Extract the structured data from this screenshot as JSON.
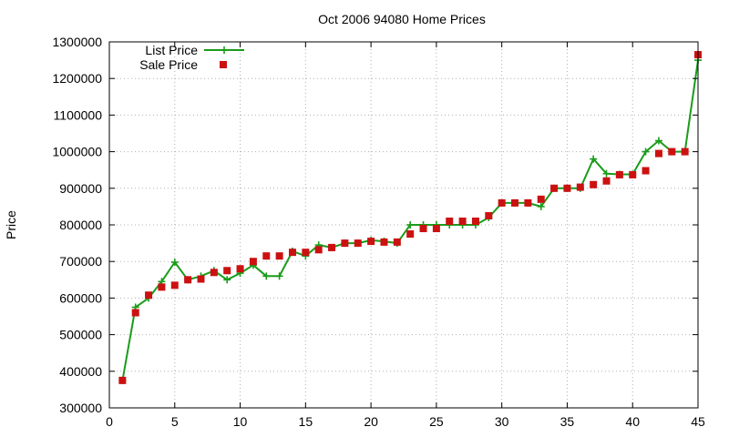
{
  "chart_data": {
    "type": "line",
    "title": "Oct 2006 94080 Home Prices",
    "xlabel": "",
    "ylabel": "Price",
    "xlim": [
      0,
      45
    ],
    "ylim": [
      300000,
      1300000
    ],
    "xticks": [
      0,
      5,
      10,
      15,
      20,
      25,
      30,
      35,
      40,
      45
    ],
    "yticks": [
      300000,
      400000,
      500000,
      600000,
      700000,
      800000,
      900000,
      1000000,
      1100000,
      1200000,
      1300000
    ],
    "xtick_labels": [
      "0",
      "5",
      "10",
      "15",
      "20",
      "25",
      "30",
      "35",
      "40",
      "45"
    ],
    "ytick_labels": [
      "300000",
      "400000",
      "500000",
      "600000",
      "700000",
      "800000",
      "900000",
      "1000000",
      "1100000",
      "1200000",
      "1300000"
    ],
    "grid": true,
    "legend_position": "top-left",
    "series": [
      {
        "name": "List Price",
        "style": "lines+points",
        "marker": "plus",
        "color": "#1a9c1a",
        "x": [
          1,
          2,
          3,
          4,
          5,
          6,
          7,
          8,
          9,
          10,
          11,
          12,
          13,
          14,
          15,
          16,
          17,
          18,
          19,
          20,
          21,
          22,
          23,
          24,
          25,
          26,
          27,
          28,
          29,
          30,
          31,
          32,
          33,
          34,
          35,
          36,
          37,
          38,
          39,
          40,
          41,
          42,
          43,
          44,
          45
        ],
        "y": [
          375000,
          575000,
          600000,
          645000,
          698000,
          650000,
          660000,
          675000,
          650000,
          668000,
          690000,
          660000,
          660000,
          728000,
          715000,
          745000,
          738000,
          750000,
          750000,
          758000,
          755000,
          750000,
          800000,
          800000,
          800000,
          800000,
          800000,
          800000,
          820000,
          860000,
          860000,
          860000,
          850000,
          900000,
          900000,
          900000,
          980000,
          940000,
          938000,
          938000,
          1000000,
          1030000,
          1000000,
          1000000,
          1250000
        ]
      },
      {
        "name": "Sale Price",
        "style": "points",
        "marker": "square",
        "color": "#cc1111",
        "x": [
          1,
          2,
          3,
          4,
          5,
          6,
          7,
          8,
          9,
          10,
          11,
          12,
          13,
          14,
          15,
          16,
          17,
          18,
          19,
          20,
          21,
          22,
          23,
          24,
          25,
          26,
          27,
          28,
          29,
          30,
          31,
          32,
          33,
          34,
          35,
          36,
          37,
          38,
          39,
          40,
          41,
          42,
          43,
          44,
          45
        ],
        "y": [
          375000,
          560000,
          608000,
          630000,
          635000,
          650000,
          652000,
          670000,
          675000,
          680000,
          700000,
          715000,
          715000,
          725000,
          725000,
          732000,
          738000,
          750000,
          750000,
          755000,
          753000,
          753000,
          775000,
          790000,
          790000,
          810000,
          810000,
          810000,
          825000,
          860000,
          860000,
          860000,
          870000,
          900000,
          900000,
          903000,
          910000,
          920000,
          937000,
          937000,
          948000,
          995000,
          1000000,
          1000000,
          1265000
        ]
      }
    ]
  }
}
